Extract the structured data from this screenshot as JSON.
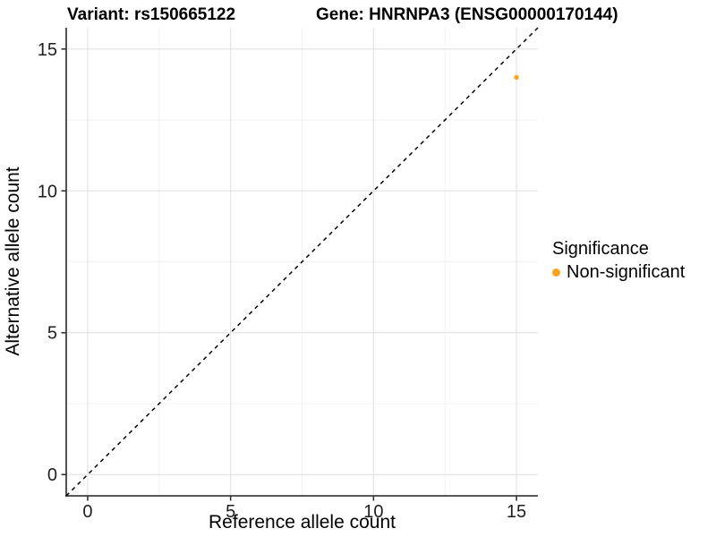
{
  "chart_data": {
    "type": "scatter",
    "title_variant": "Variant: rs150665122",
    "title_gene": "Gene: HNRNPA3 (ENSG00000170144)",
    "xlabel": "Reference allele count",
    "ylabel": "Alternative allele count",
    "xlim": [
      -0.75,
      15.75
    ],
    "ylim": [
      -0.75,
      15.75
    ],
    "xticks": [
      0,
      5,
      10,
      15
    ],
    "yticks": [
      0,
      5,
      10,
      15
    ],
    "minor_ticks": [
      2.5,
      7.5,
      12.5
    ],
    "grid": true,
    "series": [
      {
        "name": "Non-significant",
        "color": "#FAA41E",
        "points": [
          {
            "x": 15,
            "y": 14
          }
        ]
      }
    ],
    "reference_line": {
      "type": "abline",
      "slope": 1,
      "intercept": 0,
      "style": "dashed",
      "color": "#000000"
    },
    "legend": {
      "position": "right",
      "title": "Significance",
      "entries": [
        {
          "label": "Non-significant",
          "color": "#FAA41E"
        }
      ]
    },
    "colors": {
      "point_orange": "#FAA41E",
      "grid_major": "#e5e5e5",
      "grid_minor": "#f2f2f2",
      "axis_line": "#404040",
      "tick_text": "#1f1f1f"
    }
  }
}
